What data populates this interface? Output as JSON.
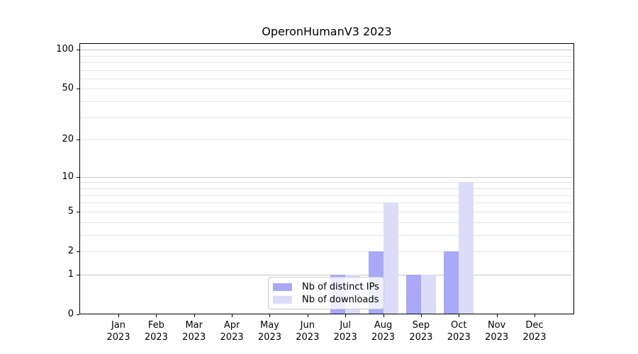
{
  "chart_data": {
    "type": "bar",
    "title": "OperonHumanV3 2023",
    "year_label": "2023",
    "categories": [
      "Jan",
      "Feb",
      "Mar",
      "Apr",
      "May",
      "Jun",
      "Jul",
      "Aug",
      "Sep",
      "Oct",
      "Nov",
      "Dec"
    ],
    "series": [
      {
        "key": "distinct-ips",
        "name": "Nb of distinct IPs",
        "color": "#a9a9f7",
        "values": [
          0,
          0,
          0,
          0,
          0,
          0,
          1,
          2,
          1,
          2,
          0,
          0
        ]
      },
      {
        "key": "downloads",
        "name": "Nb of downloads",
        "color": "#dcdcf9",
        "values": [
          0,
          0,
          0,
          0,
          0,
          0,
          1,
          6,
          1,
          9,
          0,
          0
        ]
      }
    ],
    "yscale": "log1p",
    "ylim": [
      0,
      112
    ],
    "xlabel": "",
    "ylabel": "",
    "y_tick_values": [
      0,
      1,
      2,
      5,
      10,
      20,
      50,
      100
    ],
    "y_tick_labels": [
      "0",
      "1",
      "2",
      "5",
      "10",
      "20",
      "50",
      "100"
    ],
    "y_major_gridlines": [
      1,
      10,
      100
    ],
    "y_minor_gridlines": [
      2,
      3,
      4,
      5,
      6,
      7,
      8,
      9,
      20,
      30,
      40,
      50,
      60,
      70,
      80,
      90
    ],
    "grid": true,
    "legend": {
      "position": "lower center inside",
      "labels": [
        "Nb of distinct IPs",
        "Nb of downloads"
      ]
    }
  },
  "colors": {
    "background": "#ffffff",
    "spine": "#000000",
    "grid_major": "#c6c6c6",
    "grid_minor": "#e5e5e5",
    "legend_border": "#cbcbcb",
    "text": "#000000"
  }
}
